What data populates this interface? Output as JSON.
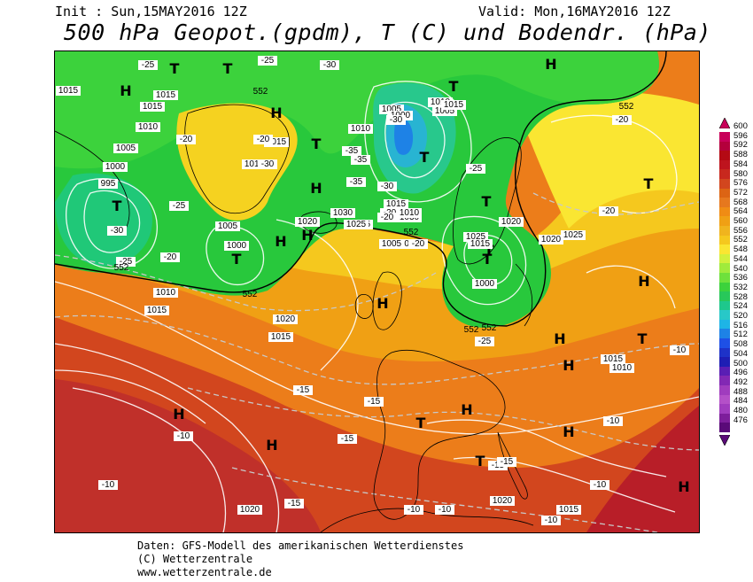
{
  "header": {
    "init": "Init : Sun,15MAY2016 12Z",
    "valid": "Valid: Mon,16MAY2016 12Z",
    "title": "500 hPa Geopot.(gpdm), T (C) und Bodendr. (hPa)"
  },
  "legend": {
    "values": [
      "600",
      "596",
      "592",
      "588",
      "584",
      "580",
      "576",
      "572",
      "568",
      "564",
      "560",
      "556",
      "552",
      "548",
      "544",
      "540",
      "536",
      "532",
      "528",
      "524",
      "520",
      "516",
      "512",
      "508",
      "504",
      "500",
      "496",
      "492",
      "488",
      "484",
      "480",
      "476"
    ],
    "colors": [
      "#c8005a",
      "#b4003c",
      "#b40a14",
      "#be141e",
      "#c8281e",
      "#d2461e",
      "#dc6414",
      "#e6781e",
      "#f08c14",
      "#f0a014",
      "#f0b41e",
      "#f5c81e",
      "#fae632",
      "#d2f03c",
      "#a0eb3c",
      "#6ee13c",
      "#3cd23c",
      "#28c85a",
      "#1ec88c",
      "#28c8c8",
      "#1eb4e6",
      "#1e82e6",
      "#1e50e6",
      "#1e32c8",
      "#1e1eb4",
      "#5a1eb4",
      "#8228b4",
      "#a03cbe",
      "#b450c8",
      "#a03cbe",
      "#7d1e9b",
      "#5a0a78"
    ]
  },
  "map": {
    "highs": [
      "H",
      "H",
      "H",
      "H",
      "H",
      "H",
      "H",
      "H",
      "H",
      "H",
      "H",
      "H",
      "H",
      "H",
      "H"
    ],
    "lows": [
      "T",
      "T",
      "T",
      "T",
      "T",
      "T",
      "T",
      "T",
      "T",
      "T",
      "T",
      "T",
      "T",
      "T"
    ],
    "pressure_labels": [
      "1015",
      "1015",
      "1015",
      "1010",
      "1005",
      "1000",
      "995",
      "1005",
      "1000",
      "1005",
      "1010",
      "1015",
      "1010",
      "1015",
      "1025",
      "1030",
      "1020",
      "1025",
      "1030",
      "1030",
      "1025",
      "1020",
      "1015",
      "1010",
      "1005",
      "1000",
      "1000",
      "1005",
      "1010",
      "1015",
      "1020",
      "1025",
      "1020",
      "1020",
      "1015",
      "1010",
      "1010",
      "1015",
      "1020",
      "1015",
      "1015"
    ],
    "temp_labels": [
      "-25",
      "-25",
      "-30",
      "-35",
      "-30",
      "-20",
      "-20",
      "-25",
      "-30",
      "-35",
      "-35",
      "-30",
      "-30",
      "-25",
      "-20",
      "-20",
      "-25",
      "-20",
      "-15",
      "-15",
      "-15",
      "-10",
      "-10",
      "-10",
      "-10",
      "-10",
      "-15",
      "-20",
      "-25",
      "-20",
      "-20",
      "-10",
      "-15",
      "-15",
      "-10",
      "-10"
    ],
    "geopot_labels": [
      "552",
      "552",
      "552",
      "552",
      "552",
      "552",
      "552"
    ]
  },
  "credits": {
    "line1": "Daten: GFS-Modell des amerikanischen Wetterdienstes",
    "line2": "(C) Wetterzentrale",
    "line3": "www.wetterzentrale.de"
  }
}
